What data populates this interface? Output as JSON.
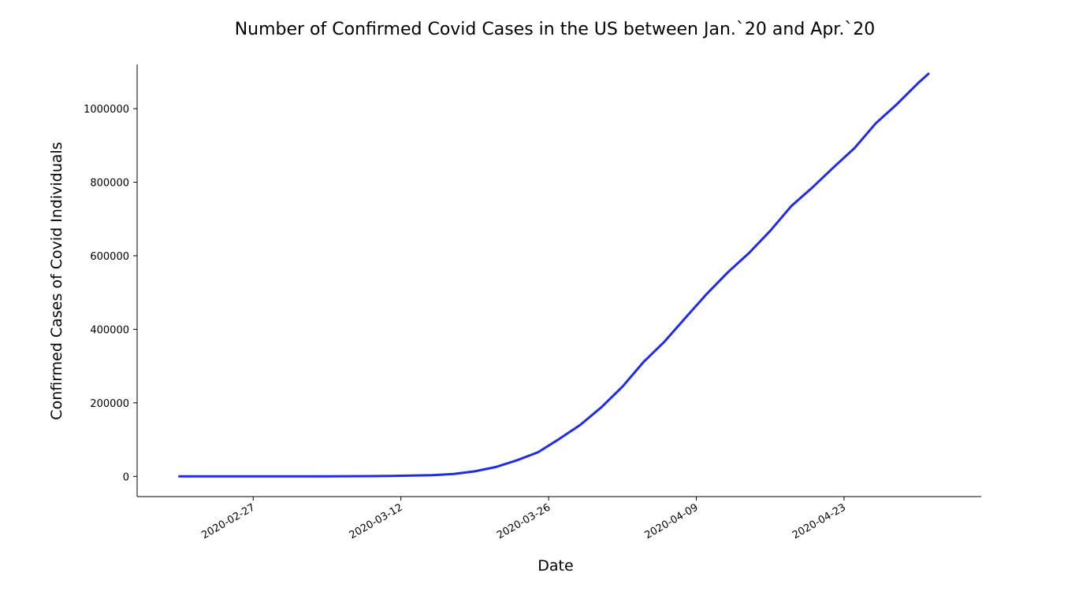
{
  "chart_data": {
    "type": "line",
    "title": "Number of Confirmed Covid Cases in the US between Jan.`20 and Apr.`20",
    "xlabel": "Date",
    "ylabel": "Confirmed Cases of Covid Individuals",
    "line_color": "#1f2be8",
    "grid": false,
    "x_ticks": [
      "2020-02-27",
      "2020-03-12",
      "2020-03-26",
      "2020-04-09",
      "2020-04-23"
    ],
    "y_ticks": [
      0,
      200000,
      400000,
      600000,
      800000,
      1000000
    ],
    "ylim": [
      -55000,
      1120000
    ],
    "xlim": [
      "2020-02-16",
      "2020-05-06"
    ],
    "series": [
      {
        "x": [
          "2020-02-20",
          "2020-02-22",
          "2020-02-24",
          "2020-02-26",
          "2020-02-28",
          "2020-03-01",
          "2020-03-03",
          "2020-03-05",
          "2020-03-07",
          "2020-03-09",
          "2020-03-11",
          "2020-03-13",
          "2020-03-15",
          "2020-03-17",
          "2020-03-19",
          "2020-03-21",
          "2020-03-23",
          "2020-03-25",
          "2020-03-27",
          "2020-03-29",
          "2020-03-31",
          "2020-04-02",
          "2020-04-04",
          "2020-04-06",
          "2020-04-08",
          "2020-04-10",
          "2020-04-12",
          "2020-04-14",
          "2020-04-16",
          "2020-04-18",
          "2020-04-20",
          "2020-04-22",
          "2020-04-24",
          "2020-04-26",
          "2020-04-28",
          "2020-04-30",
          "2020-05-01"
        ],
        "y": [
          15,
          15,
          20,
          20,
          60,
          80,
          120,
          220,
          450,
          700,
          1300,
          2200,
          3500,
          6500,
          13700,
          25500,
          43800,
          65800,
          101600,
          139900,
          188200,
          244000,
          311300,
          367000,
          432100,
          496500,
          555300,
          607700,
          667800,
          735000,
          785600,
          840300,
          893000,
          960000,
          1012000,
          1069000,
          1095000
        ]
      }
    ]
  }
}
